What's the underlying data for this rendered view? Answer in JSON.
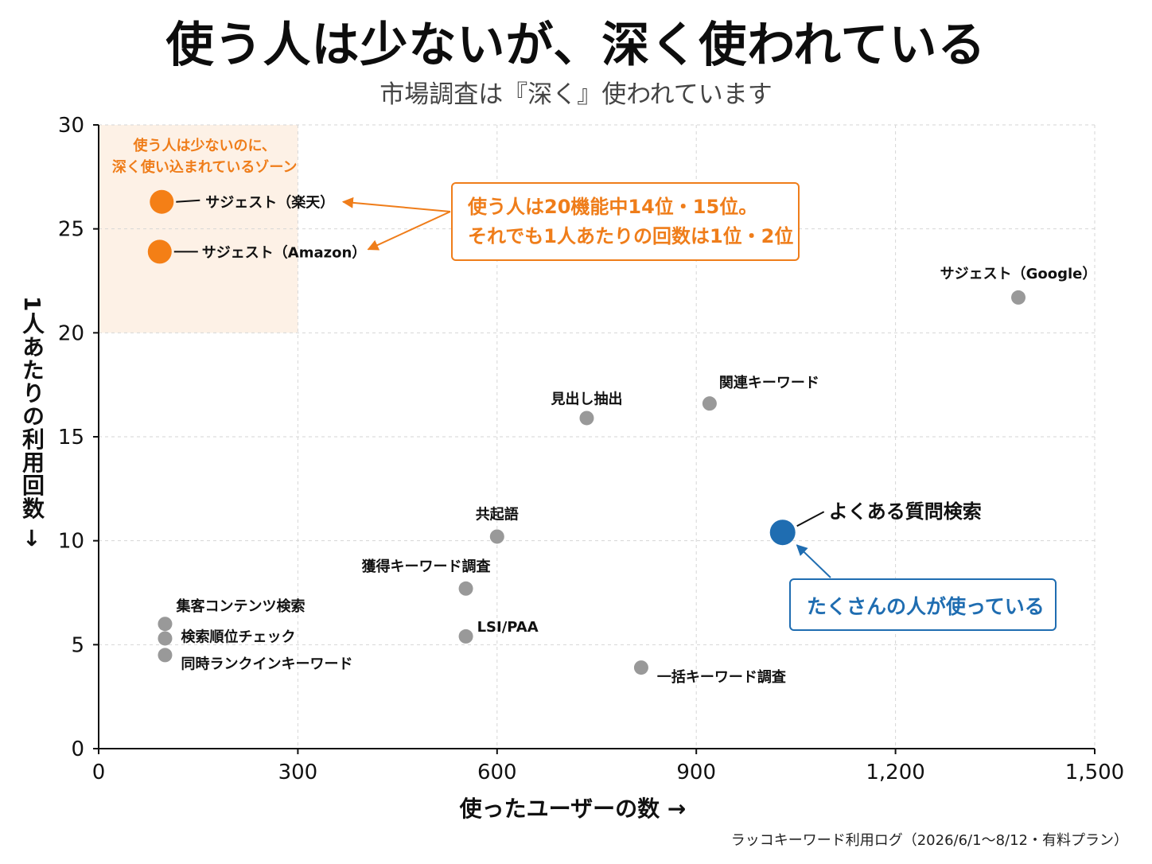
{
  "title": "使う人は少ないが、深く使われている",
  "subtitle": "市場調査は『深く』使われています",
  "source_note": "ラッコキーワード利用ログ（2026/6/1〜8/12・有料プラン）",
  "colors": {
    "highlight": "#f47f16",
    "primary": "#1f6db1",
    "neutral": "#999999",
    "zone_fill": "#fdf1e6"
  },
  "chart_data": {
    "type": "scatter",
    "xlabel": "使ったユーザーの数 →",
    "ylabel": "1人あたりの利用回数 →",
    "xlim": [
      0,
      1500
    ],
    "ylim": [
      0,
      30
    ],
    "xticks": [
      0,
      300,
      600,
      900,
      1200,
      1500
    ],
    "xtick_labels": [
      "0",
      "300",
      "600",
      "900",
      "1,200",
      "1,500"
    ],
    "yticks": [
      0,
      5,
      10,
      15,
      20,
      25,
      30
    ],
    "ytick_labels": [
      "0",
      "5",
      "10",
      "15",
      "20",
      "25",
      "30"
    ],
    "grid": true,
    "points": [
      {
        "label": "サジェスト（楽天）",
        "x": 95,
        "y": 26.3,
        "group": "highlight"
      },
      {
        "label": "サジェスト（Amazon）",
        "x": 92,
        "y": 23.9,
        "group": "highlight"
      },
      {
        "label": "サジェスト（Google）",
        "x": 1385,
        "y": 21.7,
        "group": "neutral"
      },
      {
        "label": "見出し抽出",
        "x": 735,
        "y": 15.9,
        "group": "neutral"
      },
      {
        "label": "関連キーワード",
        "x": 920,
        "y": 16.6,
        "group": "neutral"
      },
      {
        "label": "共起語",
        "x": 600,
        "y": 10.2,
        "group": "neutral"
      },
      {
        "label": "よくある質問検索",
        "x": 1030,
        "y": 10.4,
        "group": "primary"
      },
      {
        "label": "獲得キーワード調査",
        "x": 553,
        "y": 7.7,
        "group": "neutral"
      },
      {
        "label": "集客コンテンツ検索",
        "x": 100,
        "y": 6.0,
        "group": "neutral"
      },
      {
        "label": "検索順位チェック",
        "x": 100,
        "y": 5.3,
        "group": "neutral"
      },
      {
        "label": "同時ランクインキーワード",
        "x": 100,
        "y": 4.5,
        "group": "neutral"
      },
      {
        "label": "LSI/PAA",
        "x": 553,
        "y": 5.4,
        "group": "neutral"
      },
      {
        "label": "一括キーワード調査",
        "x": 817,
        "y": 3.9,
        "group": "neutral"
      }
    ],
    "zone": {
      "x_range": [
        0,
        300
      ],
      "y_range": [
        20,
        30
      ],
      "label_lines": [
        "使う人は少ないのに、",
        "深く使い込まれているゾーン"
      ]
    },
    "annotations": {
      "orange_callout": [
        "使う人は20機能中14位・15位。",
        "それでも1人あたりの回数は1位・2位"
      ],
      "blue_callout": "たくさんの人が使っている"
    }
  }
}
